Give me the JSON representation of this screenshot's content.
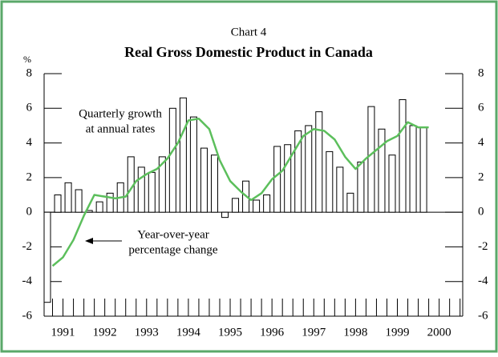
{
  "chart_data": {
    "type": "bar",
    "supertitle": "Chart 4",
    "title": "Real Gross Domestic Product in Canada",
    "y_label": "%",
    "categories": [
      null,
      null,
      null,
      null,
      null,
      null,
      null,
      null,
      null,
      null,
      null,
      null,
      null,
      null,
      null,
      null,
      null,
      null,
      null,
      null,
      null,
      null,
      null,
      null,
      null,
      null,
      null,
      null,
      null,
      null,
      null,
      null,
      null,
      null,
      null,
      null,
      null
    ],
    "years": [
      "1991",
      "1992",
      "1993",
      "1994",
      "1995",
      "1996",
      "1997",
      "1998",
      "1999",
      "2000"
    ],
    "series": [
      {
        "type": "bar",
        "color": "#ffffff",
        "values": [
          -5.2,
          1.0,
          1.7,
          1.3,
          0.1,
          0.6,
          1.1,
          1.7,
          3.2,
          2.6,
          2.3,
          3.2,
          6.0,
          6.6,
          5.5,
          3.7,
          3.3,
          -0.3,
          0.8,
          1.8,
          0.7,
          1.0,
          3.8,
          3.9,
          4.7,
          5.0,
          5.8,
          3.5,
          2.6,
          1.1,
          2.9,
          6.1,
          4.8,
          3.3,
          6.5,
          5.0,
          4.9
        ]
      },
      {
        "type": "line",
        "color": "#5cbf5c",
        "values": [
          -3.1,
          -2.6,
          -1.6,
          -0.2,
          1.0,
          0.9,
          0.8,
          0.9,
          1.8,
          2.2,
          2.5,
          3.1,
          4.0,
          5.3,
          5.4,
          4.8,
          3.0,
          1.8,
          1.2,
          0.7,
          1.1,
          1.9,
          2.4,
          3.4,
          4.4,
          4.8,
          4.7,
          4.2,
          3.2,
          2.5,
          3.1,
          3.6,
          4.1,
          4.4,
          5.2,
          4.9,
          4.9
        ]
      }
    ],
    "annotations": [
      [
        "Quarterly growth",
        "at annual rates"
      ],
      [
        "Year-over-year",
        "percentage change"
      ]
    ],
    "ylim": [
      -6,
      8
    ],
    "yticks": [
      -6,
      -4,
      -2,
      0,
      2,
      4,
      6,
      8
    ]
  }
}
